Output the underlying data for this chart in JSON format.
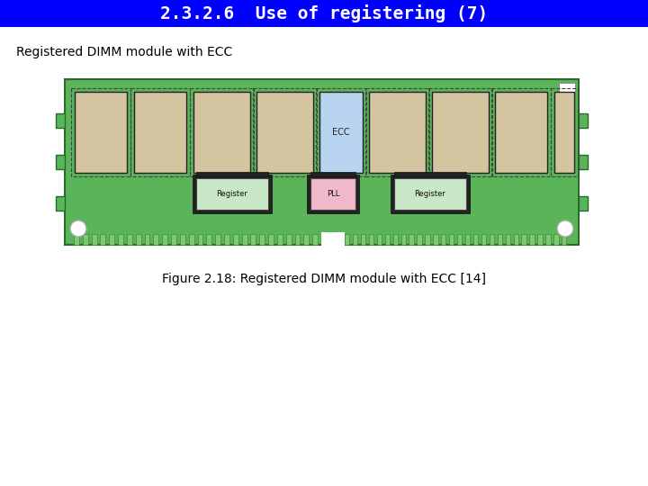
{
  "title": "2.3.2.6  Use of registering (7)",
  "title_bg": "#0000FF",
  "title_color": "#FFFFFF",
  "subtitle": "Registered DIMM module with ECC",
  "caption": "Figure 2.18: Registered DIMM module with ECC [14]",
  "board_color": "#5AB55A",
  "board_dark": "#3A8A3A",
  "chip_color": "#D4C5A0",
  "ecc_chip_color": "#B8D4F0",
  "register_chip_color": "#C8E8C8",
  "pll_chip_color": "#F0B8C8",
  "fig_width": 7.2,
  "fig_height": 5.4,
  "dpi": 100
}
